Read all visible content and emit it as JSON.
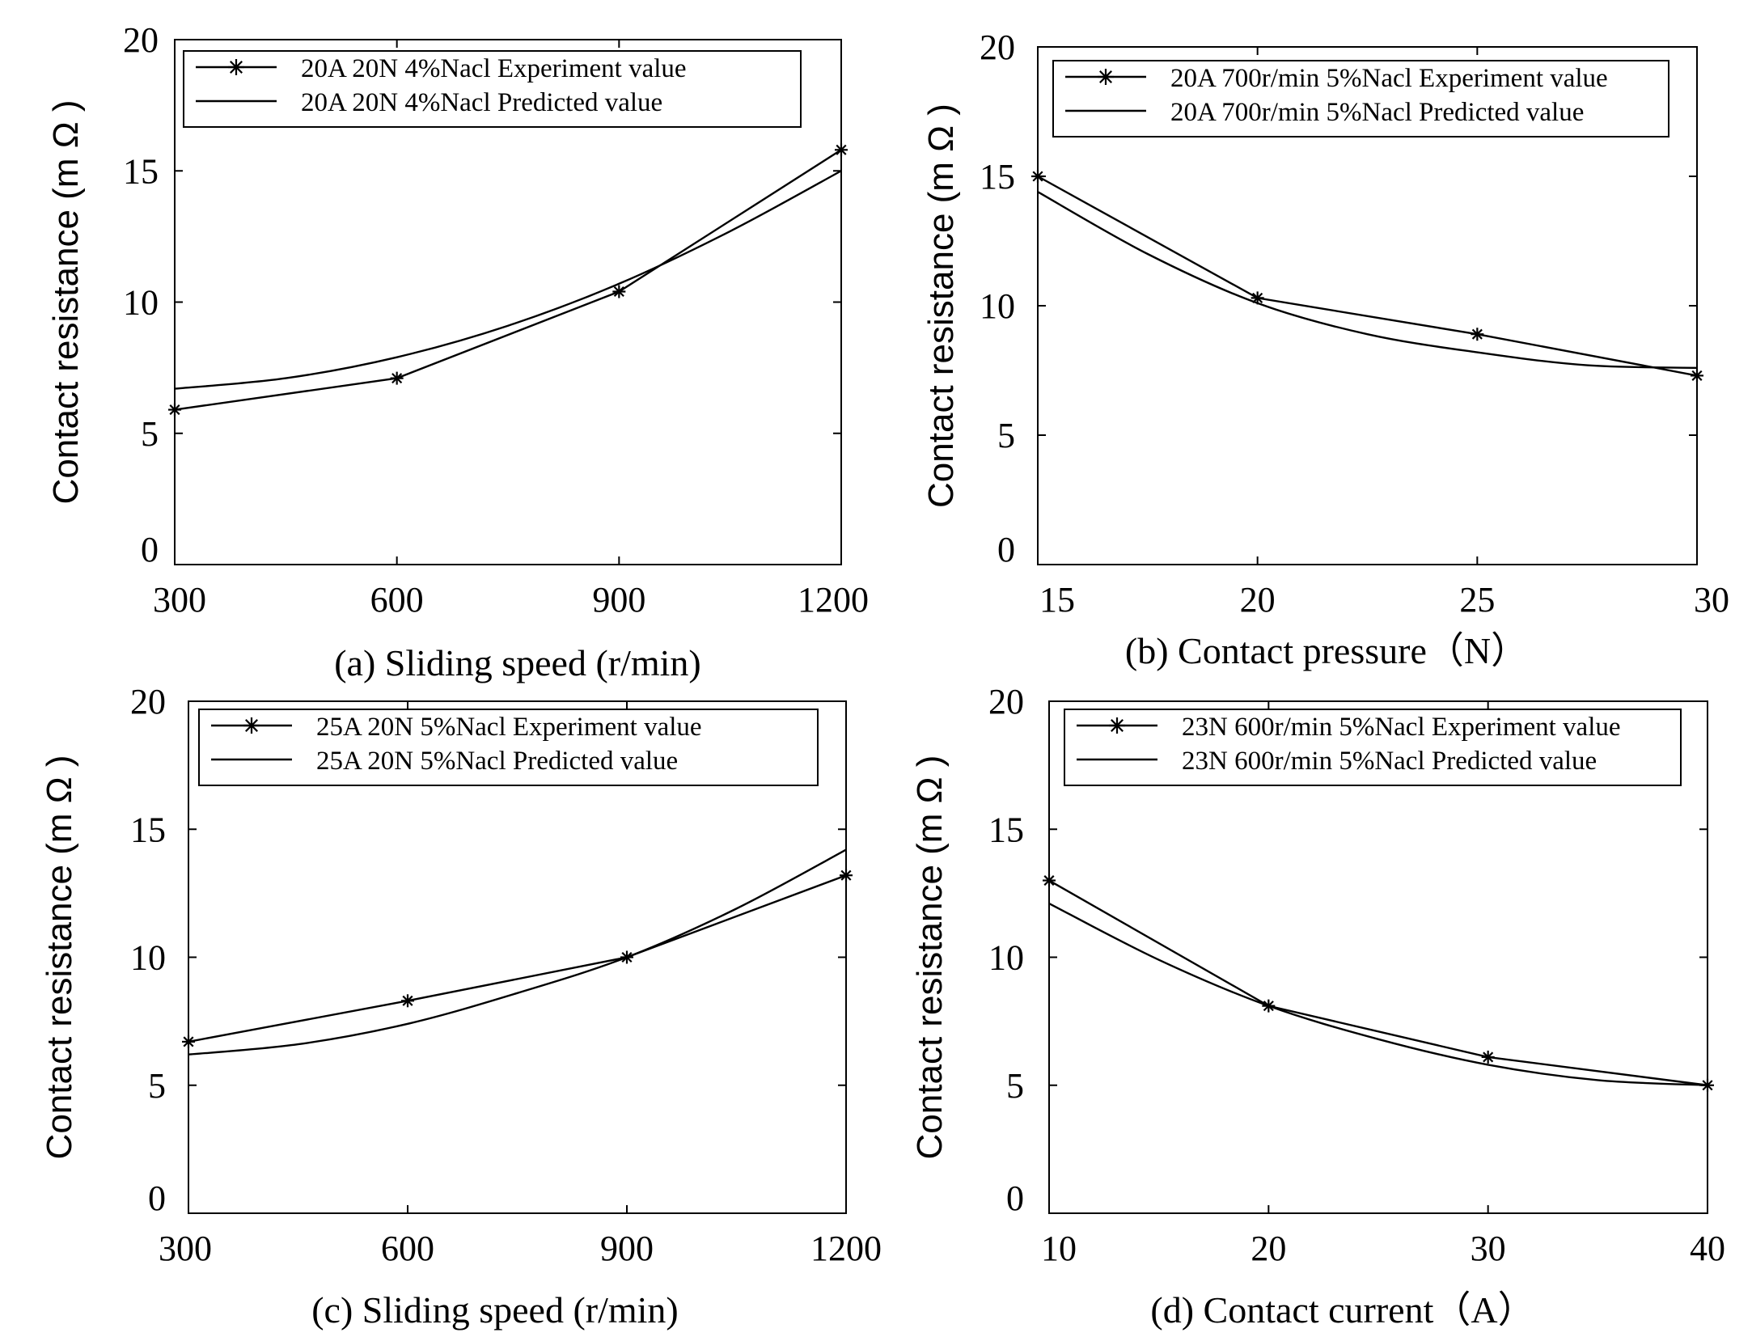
{
  "chart_data": [
    {
      "type": "line",
      "xlabel": "(a) Sliding speed (r/min)",
      "ylabel": "Contact resistance (m Ω )",
      "xlim": [
        300,
        1200
      ],
      "ylim": [
        0,
        20
      ],
      "xticks": [
        300,
        600,
        900,
        1200
      ],
      "xtick_labels": [
        "300",
        "600",
        "900",
        "1200"
      ],
      "yticks": [
        0,
        5,
        10,
        15,
        20
      ],
      "ytick_labels": [
        "0",
        "5",
        "10",
        "15",
        "20"
      ],
      "legend_position": "top-left",
      "series": [
        {
          "name": "20A 20N 4%Nacl Experiment value",
          "style": "line-marker-star",
          "x": [
            300,
            600,
            900,
            1200
          ],
          "y": [
            5.9,
            7.1,
            10.4,
            15.8
          ]
        },
        {
          "name": "20A 20N 4%Nacl Predicted value",
          "style": "line",
          "x": [
            300,
            450,
            600,
            750,
            900,
            1050,
            1200
          ],
          "y": [
            6.7,
            7.1,
            7.9,
            9.1,
            10.7,
            12.7,
            15.0
          ]
        }
      ]
    },
    {
      "type": "line",
      "xlabel": "(b) Contact pressure（N）",
      "ylabel": "Contact resistance (m Ω )",
      "xlim": [
        15,
        30
      ],
      "ylim": [
        0,
        20
      ],
      "xticks": [
        15,
        20,
        25,
        30
      ],
      "xtick_labels": [
        "15",
        "20",
        "25",
        "30"
      ],
      "yticks": [
        0,
        5,
        10,
        15,
        20
      ],
      "ytick_labels": [
        "0",
        "5",
        "10",
        "15",
        "20"
      ],
      "legend_position": "top-right",
      "series": [
        {
          "name": "20A 700r/min 5%Nacl Experiment value",
          "style": "line-marker-star",
          "x": [
            15,
            20,
            25,
            30
          ],
          "y": [
            15.0,
            10.3,
            8.9,
            7.3
          ]
        },
        {
          "name": "20A 700r/min 5%Nacl Predicted value",
          "style": "line",
          "x": [
            15,
            17.5,
            20,
            22.5,
            25,
            27.5,
            30
          ],
          "y": [
            14.4,
            12.0,
            10.1,
            8.9,
            8.2,
            7.7,
            7.6
          ]
        }
      ]
    },
    {
      "type": "line",
      "xlabel": "(c)  Sliding speed (r/min)",
      "ylabel": "Contact resistance (m Ω )",
      "xlim": [
        300,
        1200
      ],
      "ylim": [
        0,
        20
      ],
      "xticks": [
        300,
        600,
        900,
        1200
      ],
      "xtick_labels": [
        "300",
        "600",
        "900",
        "1200"
      ],
      "yticks": [
        0,
        5,
        10,
        15,
        20
      ],
      "ytick_labels": [
        "0",
        "5",
        "10",
        "15",
        "20"
      ],
      "legend_position": "top-left",
      "series": [
        {
          "name": "25A 20N 5%Nacl Experiment value",
          "style": "line-marker-star",
          "x": [
            300,
            600,
            900,
            1200
          ],
          "y": [
            6.7,
            8.3,
            10.0,
            13.2
          ]
        },
        {
          "name": "25A 20N 5%Nacl Predicted value",
          "style": "line",
          "x": [
            300,
            450,
            600,
            750,
            900,
            1050,
            1200
          ],
          "y": [
            6.2,
            6.6,
            7.4,
            8.6,
            10.0,
            11.9,
            14.2
          ]
        }
      ]
    },
    {
      "type": "line",
      "xlabel": "(d) Contact current（A）",
      "ylabel": "Contact resistance (m Ω )",
      "xlim": [
        10,
        40
      ],
      "ylim": [
        0,
        20
      ],
      "xticks": [
        10,
        20,
        30,
        40
      ],
      "xtick_labels": [
        "10",
        "20",
        "30",
        "40"
      ],
      "yticks": [
        0,
        5,
        10,
        15,
        20
      ],
      "ytick_labels": [
        "0",
        "5",
        "10",
        "15",
        "20"
      ],
      "legend_position": "top-right",
      "series": [
        {
          "name": "23N 600r/min 5%Nacl Experiment value",
          "style": "line-marker-star",
          "x": [
            10,
            20,
            30,
            40
          ],
          "y": [
            13.0,
            8.1,
            6.1,
            5.0
          ]
        },
        {
          "name": "23N 600r/min 5%Nacl Predicted value",
          "style": "line",
          "x": [
            10,
            15,
            20,
            25,
            30,
            35,
            40
          ],
          "y": [
            12.1,
            9.9,
            8.1,
            6.8,
            5.8,
            5.2,
            5.0
          ]
        }
      ]
    }
  ]
}
